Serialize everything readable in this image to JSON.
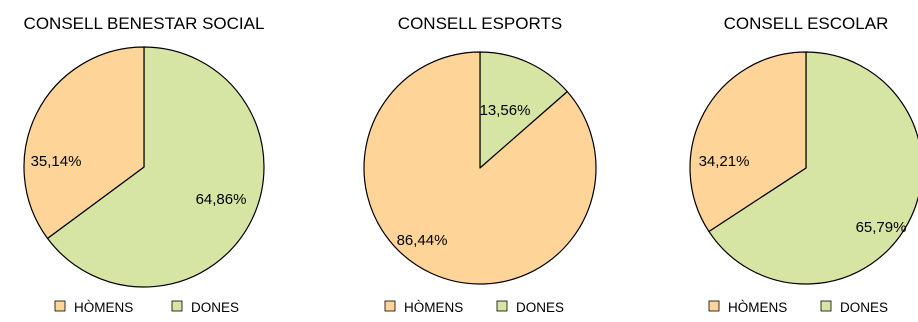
{
  "chart_data": [
    {
      "type": "pie",
      "title": "CONSELL BENESTAR SOCIAL",
      "categories": [
        "HÒMENS",
        "DONES"
      ],
      "values": [
        35.14,
        64.86
      ],
      "labels": [
        "35,14%",
        "64,86%"
      ],
      "colors": [
        "#fed499",
        "#d6e4a4"
      ],
      "legend": "bottom"
    },
    {
      "type": "pie",
      "title": "CONSELL ESPORTS",
      "categories": [
        "HÒMENS",
        "DONES"
      ],
      "values": [
        86.44,
        13.56
      ],
      "labels": [
        "86,44%",
        "13,56%"
      ],
      "colors": [
        "#fed499",
        "#d6e4a4"
      ],
      "legend": "bottom"
    },
    {
      "type": "pie",
      "title": "CONSELL ESCOLAR",
      "categories": [
        "HÒMENS",
        "DONES"
      ],
      "values": [
        34.21,
        65.79
      ],
      "labels": [
        "34,21%",
        "65,79%"
      ],
      "colors": [
        "#fed499",
        "#d6e4a4"
      ],
      "legend": "bottom"
    }
  ]
}
